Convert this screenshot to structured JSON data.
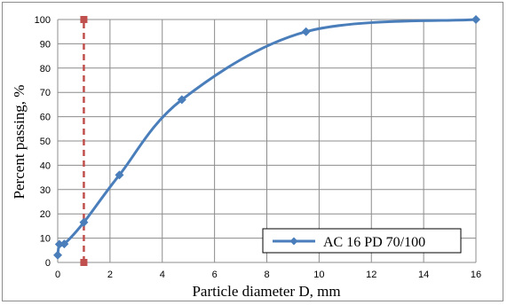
{
  "chart_data": {
    "type": "line",
    "xlabel": "Particle diameter D, mm",
    "ylabel": "Percent passing, %",
    "xlim": [
      0,
      16
    ],
    "ylim": [
      0,
      100
    ],
    "xticks": [
      0,
      2,
      4,
      6,
      8,
      10,
      12,
      14,
      16
    ],
    "yticks": [
      0,
      10,
      20,
      30,
      40,
      50,
      60,
      70,
      80,
      90,
      100
    ],
    "grid": true,
    "legend_position": "bottom-right",
    "series": [
      {
        "name": "AC 16 PD 70/100",
        "color": "#4a7ebb",
        "x": [
          0,
          0.063,
          0.25,
          1.0,
          2.36,
          4.75,
          9.5,
          16
        ],
        "y": [
          3,
          7.5,
          7.6,
          16.5,
          36,
          67,
          95,
          100
        ]
      }
    ],
    "reference_line": {
      "x": 1.0,
      "y_range": [
        0,
        100
      ],
      "color": "#c0504d",
      "style": "dashed"
    }
  }
}
